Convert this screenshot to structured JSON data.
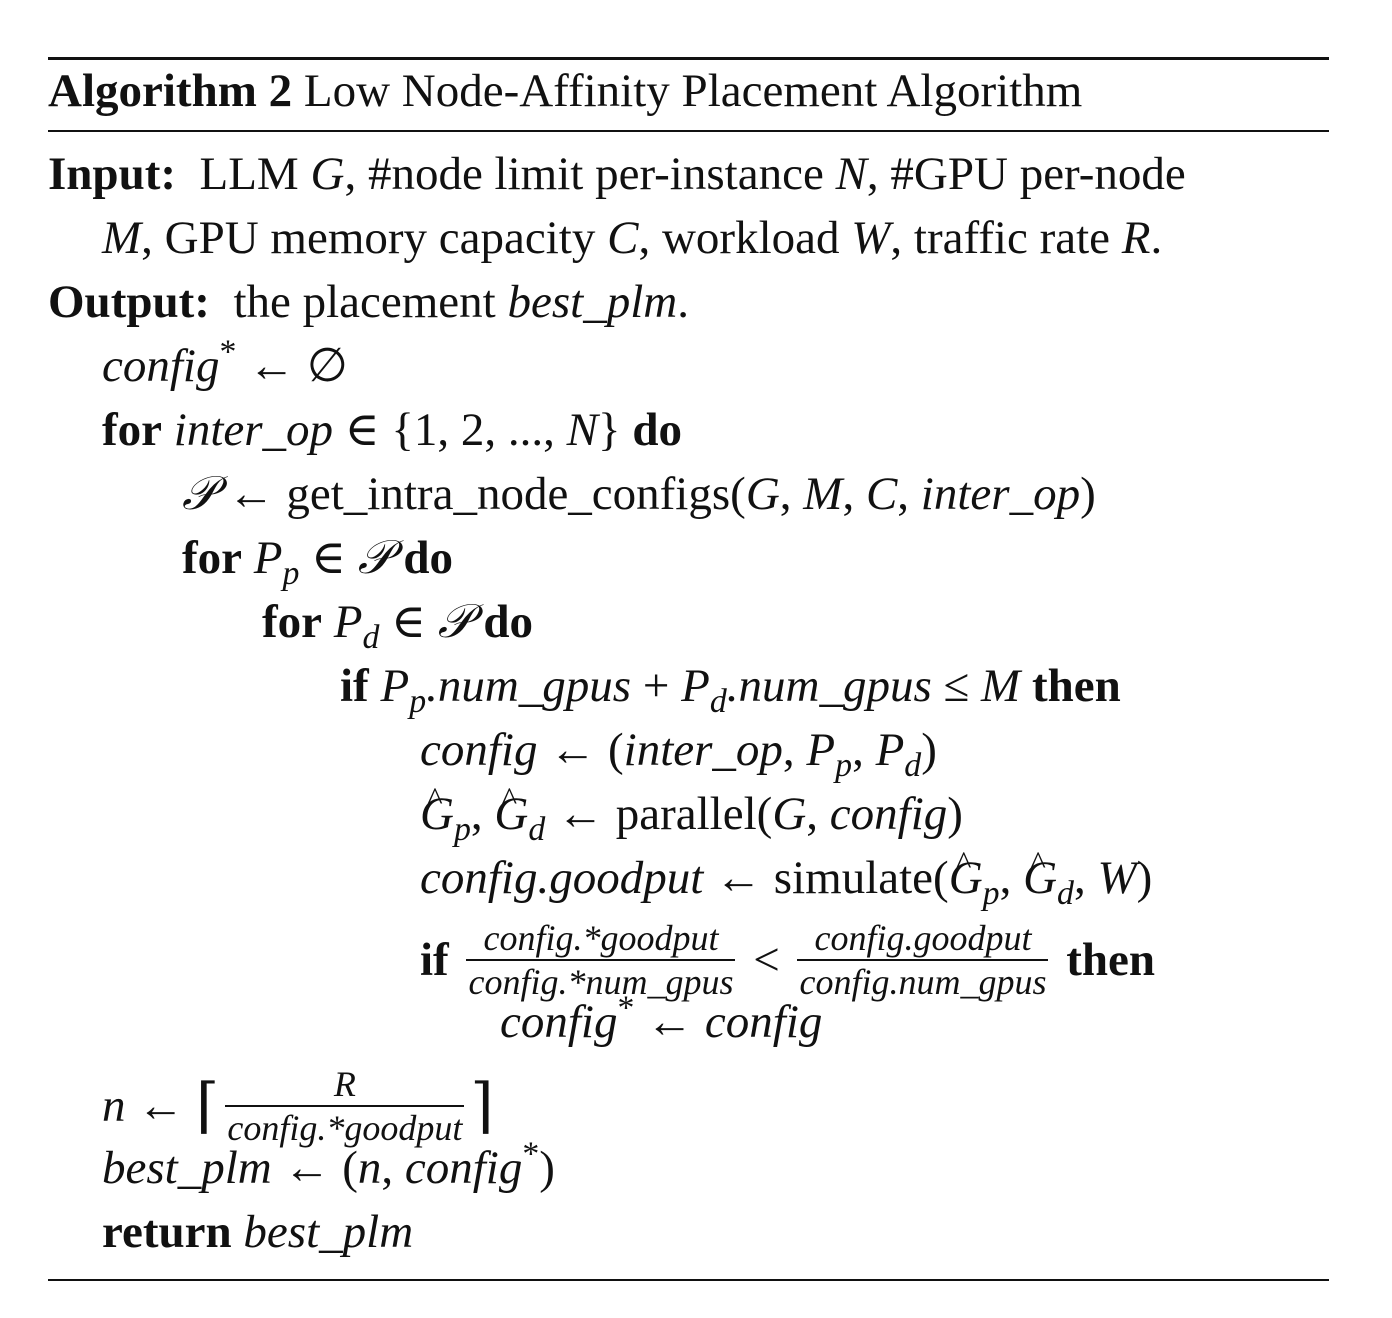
{
  "algorithm": {
    "label": "Algorithm 2",
    "title": "Low Node-Affinity Placement Algorithm"
  },
  "input": {
    "label": "Input:",
    "line1": "LLM G, #node limit per-instance N, #GPU per-node",
    "line2": "M, GPU memory capacity C, workload W, traffic rate R."
  },
  "output": {
    "label": "Output:",
    "text": "the placement best_plm."
  },
  "keywords": {
    "for": "for",
    "do": "do",
    "if": "if",
    "then": "then",
    "return": "return"
  },
  "steps": [
    "config* ← ∅",
    "for inter_op ∈ {1,2,...,N} do",
    "𝒫 ← get_intra_node_configs(G,M,C,inter_op)",
    "for P_p ∈ 𝒫 do",
    "for P_d ∈ 𝒫 do",
    "if P_p.num_gpus + P_d.num_gpus ≤ M then",
    "config ← (inter_op,P_p,P_d)",
    "Ĝ_p, Ĝ_d ← parallel(G,config)",
    "config.goodput ← simulate(Ĝ_p,Ĝ_d,W)",
    "if config.*goodput / config.*num_gpus < config.goodput / config.num_gpus then",
    "config* ← config",
    "n ← ⌈R / config.*goodput⌉",
    "best_plm ← (n,config*)",
    "return best_plm"
  ],
  "functions": {
    "get_intra": "get_intra_node_configs",
    "parallel": "parallel",
    "simulate": "simulate"
  },
  "fractions": {
    "lhs_num": "config.*goodput",
    "lhs_den": "config.*num_gpus",
    "rhs_num": "config.goodput",
    "rhs_den": "config.num_gpus",
    "n_num": "R",
    "n_den": "config.*goodput"
  }
}
